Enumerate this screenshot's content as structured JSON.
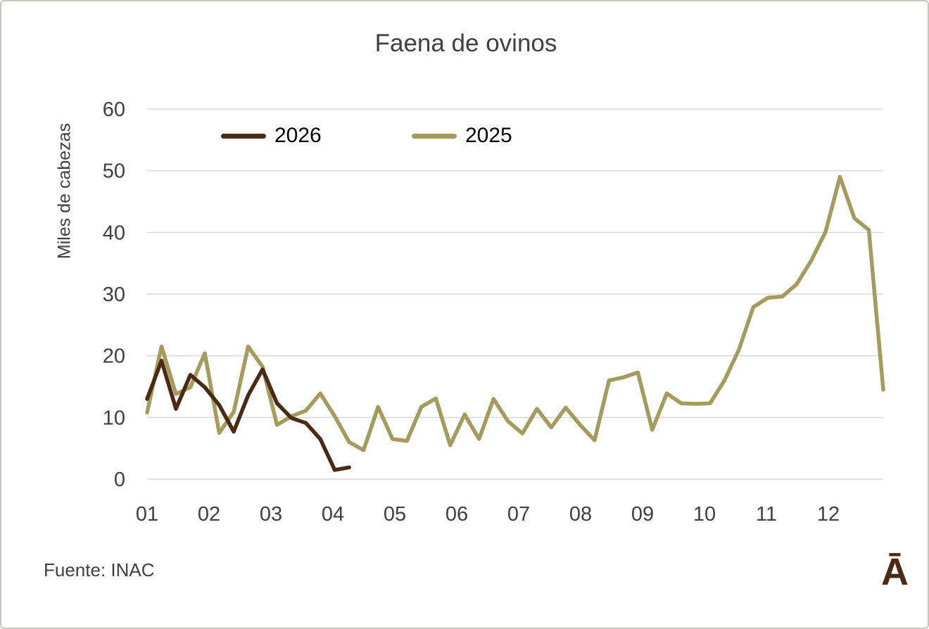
{
  "title": "Faena de ovinos",
  "source": "Fuente: INAC",
  "logo_glyph": "Ā",
  "colors": {
    "text": "#404040",
    "gridline": "#d9d9d9",
    "series_2026": "#4a2a15",
    "series_2025": "#a69b5e"
  },
  "chart_data": {
    "type": "line",
    "title": "Faena de ovinos",
    "ylabel": "Miles de cabezas",
    "xlabel": "",
    "x_unit": "week of year (weekly data)",
    "x_labels": [
      "01",
      "02",
      "03",
      "04",
      "05",
      "06",
      "07",
      "08",
      "09",
      "10",
      "11",
      "12"
    ],
    "yticks": [
      0,
      10,
      20,
      30,
      40,
      50,
      60
    ],
    "ylim": [
      0,
      60
    ],
    "grid": "horizontal only",
    "legend_position": "top inside",
    "series": [
      {
        "name": "2026",
        "color": "#4a2a15",
        "values": [
          13.0,
          19.2,
          11.4,
          16.9,
          14.9,
          12.0,
          7.7,
          13.6,
          17.8,
          12.3,
          9.9,
          9.1,
          6.5,
          1.5,
          1.9
        ]
      },
      {
        "name": "2025",
        "color": "#a69b5e",
        "values": [
          10.8,
          21.5,
          13.8,
          14.9,
          20.4,
          7.5,
          10.9,
          21.5,
          18.2,
          8.8,
          10.2,
          11.1,
          13.9,
          10.2,
          6.0,
          4.7,
          11.7,
          6.5,
          6.2,
          11.7,
          13.1,
          5.5,
          10.5,
          6.5,
          13.0,
          9.4,
          7.4,
          11.4,
          8.4,
          11.6,
          8.8,
          6.3,
          16.0,
          16.5,
          17.3,
          8.0,
          13.9,
          12.3,
          12.2,
          12.3,
          16.0,
          21.0,
          27.9,
          29.4,
          29.6,
          31.6,
          35.4,
          40.1,
          49.0,
          42.3,
          40.4,
          14.5
        ]
      }
    ]
  }
}
